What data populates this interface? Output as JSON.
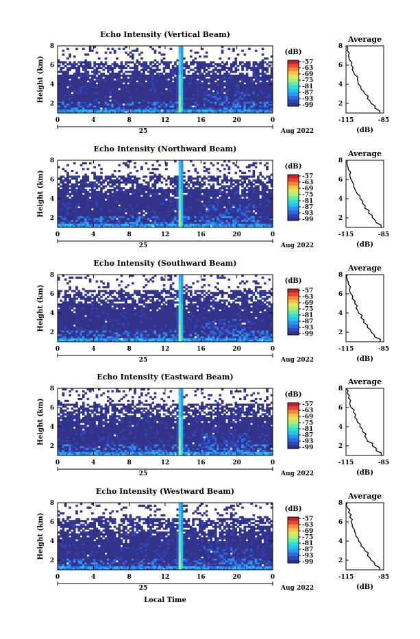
{
  "colors": {
    "scale": [
      "#33338a",
      "#2f47b8",
      "#2f6be0",
      "#2d97ee",
      "#29c2f0",
      "#31dfd6",
      "#69ecaa",
      "#a9f27e",
      "#dde85e",
      "#f5c24a",
      "#f2893b",
      "#e64a2c",
      "#c9202a"
    ],
    "ink": "#000000"
  },
  "colorbar": {
    "unit": "(dB)",
    "ticks": [
      "-57",
      "-63",
      "-69",
      "-75",
      "-81",
      "-87",
      "-93",
      "-99"
    ]
  },
  "date": {
    "day": "25",
    "month_year": "Aug 2022"
  },
  "x_axis_label": "Local Time",
  "chart_data": [
    {
      "type": "heatmap",
      "title": "Echo Intensity (Vertical Beam)",
      "ylabel": "Height (km)",
      "xlim": [
        0,
        24
      ],
      "ylim": [
        1,
        8
      ],
      "x_ticks": [
        "0",
        "4",
        "8",
        "12",
        "16",
        "20",
        "0"
      ],
      "y_ticks": [
        "2",
        "4",
        "6",
        "8"
      ],
      "color_range_db": [
        -99,
        -57
      ],
      "profile": {
        "title": "Average",
        "xlabel": "(dB)",
        "x_ticks": [
          "-115",
          "-85"
        ],
        "xlim": [
          -115,
          -85
        ],
        "height_km": [
          1.0,
          1.5,
          2.0,
          2.5,
          3.0,
          3.5,
          4.0,
          4.5,
          5.0,
          5.5,
          6.0,
          6.5,
          7.0,
          7.5,
          8.0
        ],
        "value_db": [
          -88,
          -92,
          -95,
          -98,
          -100,
          -103,
          -105,
          -106,
          -108,
          -110,
          -111,
          -112,
          -113,
          -114,
          -114
        ]
      }
    },
    {
      "type": "heatmap",
      "title": "Echo Intensity (Northward Beam)",
      "ylabel": "Height (km)",
      "xlim": [
        0,
        24
      ],
      "ylim": [
        1,
        8
      ],
      "x_ticks": [
        "0",
        "4",
        "8",
        "12",
        "16",
        "20",
        "0"
      ],
      "y_ticks": [
        "2",
        "4",
        "6",
        "8"
      ],
      "color_range_db": [
        -99,
        -57
      ],
      "profile": {
        "title": "Average",
        "xlabel": "(dB)",
        "x_ticks": [
          "-115",
          "-85"
        ],
        "xlim": [
          -115,
          -85
        ],
        "height_km": [
          1.0,
          1.5,
          2.0,
          2.5,
          3.0,
          3.5,
          4.0,
          4.5,
          5.0,
          5.5,
          6.0,
          6.5,
          7.0,
          7.5,
          8.0
        ],
        "value_db": [
          -87,
          -91,
          -94,
          -97,
          -100,
          -102,
          -104,
          -106,
          -108,
          -109,
          -111,
          -112,
          -113,
          -114,
          -114
        ]
      }
    },
    {
      "type": "heatmap",
      "title": "Echo Intensity (Southward Beam)",
      "ylabel": "Height (km)",
      "xlim": [
        0,
        24
      ],
      "ylim": [
        1,
        8
      ],
      "x_ticks": [
        "0",
        "4",
        "8",
        "12",
        "16",
        "20",
        "0"
      ],
      "y_ticks": [
        "2",
        "4",
        "6",
        "8"
      ],
      "color_range_db": [
        -99,
        -57
      ],
      "profile": {
        "title": "Average",
        "xlabel": "(dB)",
        "x_ticks": [
          "-115",
          "-85"
        ],
        "xlim": [
          -115,
          -85
        ],
        "height_km": [
          1.0,
          1.5,
          2.0,
          2.5,
          3.0,
          3.5,
          4.0,
          4.5,
          5.0,
          5.5,
          6.0,
          6.5,
          7.0,
          7.5,
          8.0
        ],
        "value_db": [
          -88,
          -92,
          -95,
          -98,
          -101,
          -103,
          -105,
          -107,
          -108,
          -110,
          -111,
          -112,
          -113,
          -114,
          -114
        ]
      }
    },
    {
      "type": "heatmap",
      "title": "Echo Intensity (Eastward Beam)",
      "ylabel": "Height (km)",
      "xlim": [
        0,
        24
      ],
      "ylim": [
        1,
        8
      ],
      "x_ticks": [
        "0",
        "4",
        "8",
        "12",
        "16",
        "20",
        "0"
      ],
      "y_ticks": [
        "2",
        "4",
        "6",
        "8"
      ],
      "color_range_db": [
        -99,
        -57
      ],
      "profile": {
        "title": "Average",
        "xlabel": "(dB)",
        "x_ticks": [
          "-115",
          "-85"
        ],
        "xlim": [
          -115,
          -85
        ],
        "height_km": [
          1.0,
          1.5,
          2.0,
          2.5,
          3.0,
          3.5,
          4.0,
          4.5,
          5.0,
          5.5,
          6.0,
          6.5,
          7.0,
          7.5,
          8.0
        ],
        "value_db": [
          -87,
          -91,
          -94,
          -98,
          -100,
          -102,
          -104,
          -106,
          -108,
          -109,
          -111,
          -112,
          -113,
          -114,
          -115
        ]
      }
    },
    {
      "type": "heatmap",
      "title": "Echo Intensity (Westward Beam)",
      "ylabel": "Height (km)",
      "xlim": [
        0,
        24
      ],
      "ylim": [
        1,
        8
      ],
      "x_ticks": [
        "0",
        "4",
        "8",
        "12",
        "16",
        "20",
        "0"
      ],
      "y_ticks": [
        "2",
        "4",
        "6",
        "8"
      ],
      "color_range_db": [
        -99,
        -57
      ],
      "profile": {
        "title": "Average",
        "xlabel": "(dB)",
        "x_ticks": [
          "-115",
          "-85"
        ],
        "xlim": [
          -115,
          -85
        ],
        "height_km": [
          1.0,
          1.5,
          2.0,
          2.5,
          3.0,
          3.5,
          4.0,
          4.5,
          5.0,
          5.5,
          6.0,
          6.5,
          7.0,
          7.5,
          8.0
        ],
        "value_db": [
          -88,
          -92,
          -95,
          -98,
          -100,
          -103,
          -105,
          -107,
          -108,
          -110,
          -111,
          -112,
          -113,
          -114,
          -114
        ]
      }
    }
  ]
}
